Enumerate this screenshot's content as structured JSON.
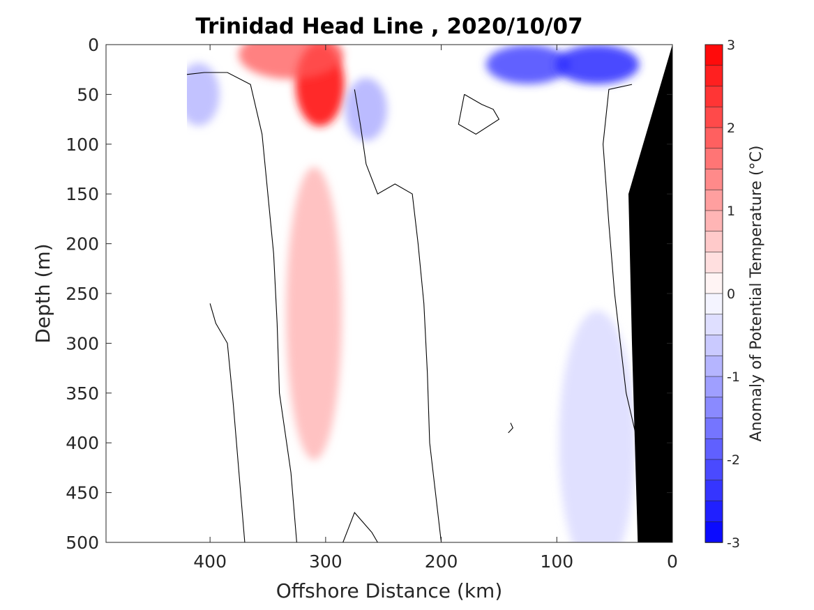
{
  "chart_data": {
    "type": "heatmap",
    "title": "Trinidad Head Line , 2020/10/07",
    "xlabel": "Offshore Distance (km)",
    "ylabel": "Depth (m)",
    "x_reversed": true,
    "y_reversed": true,
    "xlim": [
      490,
      0
    ],
    "ylim": [
      0,
      500
    ],
    "x_ticks": [
      "400",
      "300",
      "200",
      "100",
      "0"
    ],
    "x_tick_values": [
      400,
      300,
      200,
      100,
      0
    ],
    "y_ticks": [
      "0",
      "50",
      "100",
      "150",
      "200",
      "250",
      "300",
      "350",
      "400",
      "450",
      "500"
    ],
    "y_tick_values": [
      0,
      50,
      100,
      150,
      200,
      250,
      300,
      350,
      400,
      450,
      500
    ],
    "colorbar": {
      "label": "Anomaly of Potential Temperature (°C)",
      "range": [
        -3,
        3
      ],
      "step": 0.25,
      "ticks": [
        "3",
        "2",
        "1",
        "0",
        "-1",
        "-2",
        "-3"
      ],
      "tick_values": [
        3,
        2,
        1,
        0,
        -1,
        -2,
        -3
      ]
    },
    "colormap": {
      "negative": "#0000ff",
      "zero": "#ffffff",
      "positive": "#ff0000"
    },
    "bathymetry_color": "#000000",
    "zero_contour_color": "#000000",
    "features": [
      {
        "kind": "warm-core",
        "distance_km": 305,
        "depth_m": 40,
        "anomaly": 2.7
      },
      {
        "kind": "warm-surface",
        "distance_km": 330,
        "depth_m": 10,
        "anomaly": 2.0
      },
      {
        "kind": "warm-tongue",
        "distance_km": 310,
        "depth_m": 270,
        "anomaly": 0.8
      },
      {
        "kind": "cold-surface",
        "distance_km": 125,
        "depth_m": 20,
        "anomaly": -2.2
      },
      {
        "kind": "cold-surface",
        "distance_km": 65,
        "depth_m": 20,
        "anomaly": -2.5
      },
      {
        "kind": "cold-patch",
        "distance_km": 265,
        "depth_m": 65,
        "anomaly": -1.0
      },
      {
        "kind": "cold-patch",
        "distance_km": 410,
        "depth_m": 50,
        "anomaly": -0.9
      },
      {
        "kind": "cold-nearshore",
        "distance_km": 65,
        "depth_m": 400,
        "anomaly": -0.4
      }
    ],
    "section_start_km": 420,
    "grid": false
  }
}
